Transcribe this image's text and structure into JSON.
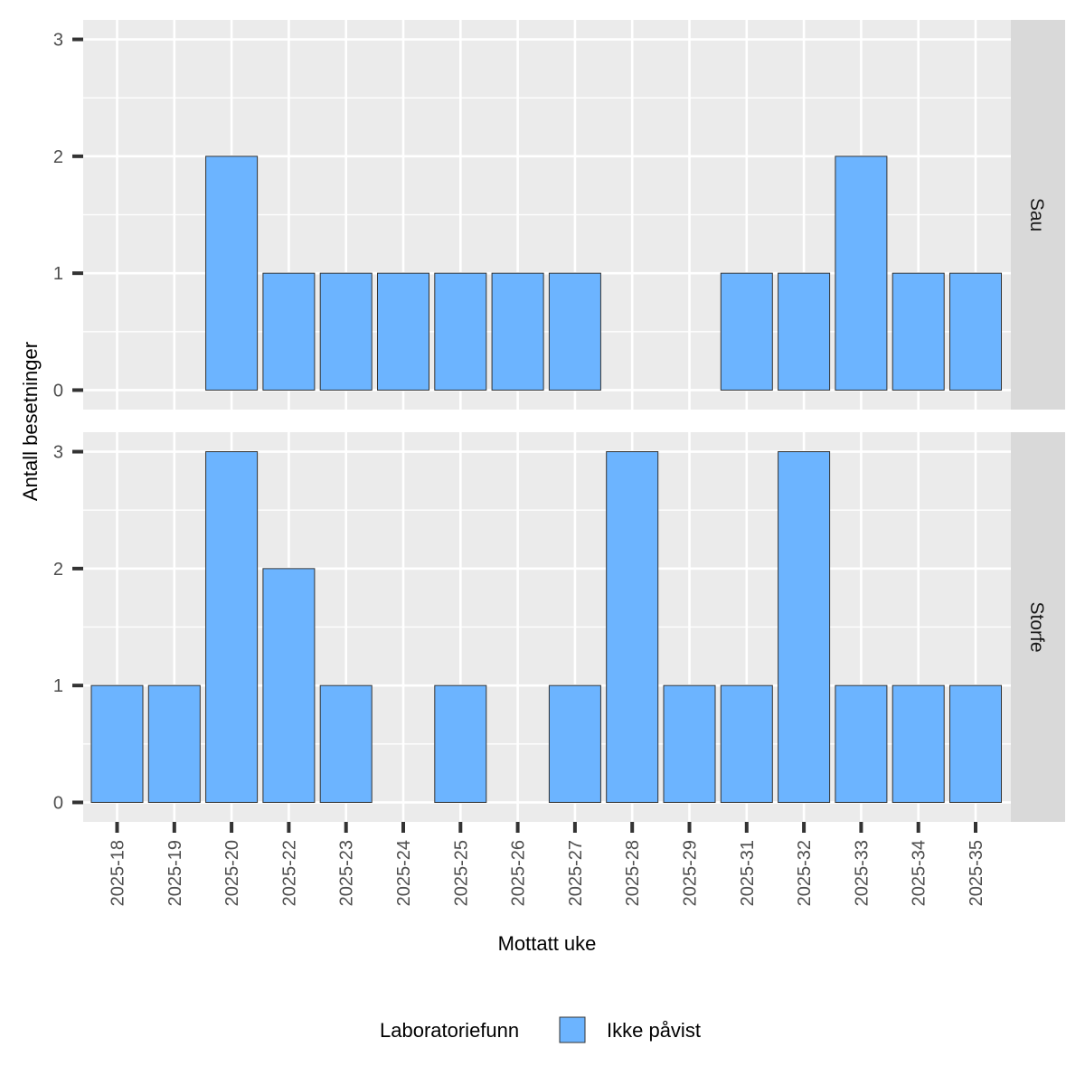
{
  "chart_data": {
    "type": "bar",
    "faceted": true,
    "xlabel": "Mottatt uke",
    "ylabel": "Antall besetninger",
    "ylim": [
      0,
      3
    ],
    "yticks": [
      0,
      1,
      2,
      3
    ],
    "grid": true,
    "categories": [
      "2025-18",
      "2025-19",
      "2025-20",
      "2025-22",
      "2025-23",
      "2025-24",
      "2025-25",
      "2025-26",
      "2025-27",
      "2025-28",
      "2025-29",
      "2025-31",
      "2025-32",
      "2025-33",
      "2025-34",
      "2025-35"
    ],
    "panels": [
      {
        "label": "Sau",
        "values": [
          0,
          0,
          2,
          1,
          1,
          1,
          1,
          1,
          1,
          0,
          0,
          1,
          1,
          2,
          1,
          1
        ]
      },
      {
        "label": "Storfe",
        "values": [
          1,
          1,
          3,
          2,
          1,
          0,
          1,
          0,
          1,
          3,
          1,
          1,
          3,
          1,
          1,
          1
        ]
      }
    ],
    "legend": {
      "title": "Laboratoriefunn",
      "placement": "bottom",
      "entries": [
        {
          "label": "Ikke påvist",
          "color": "#6CB4FF"
        }
      ]
    },
    "colors": {
      "bar_fill": "#6CB4FF",
      "bar_outline": "#333333",
      "panel_bg": "#EBEBEB",
      "strip_bg": "#D9D9D9"
    }
  }
}
